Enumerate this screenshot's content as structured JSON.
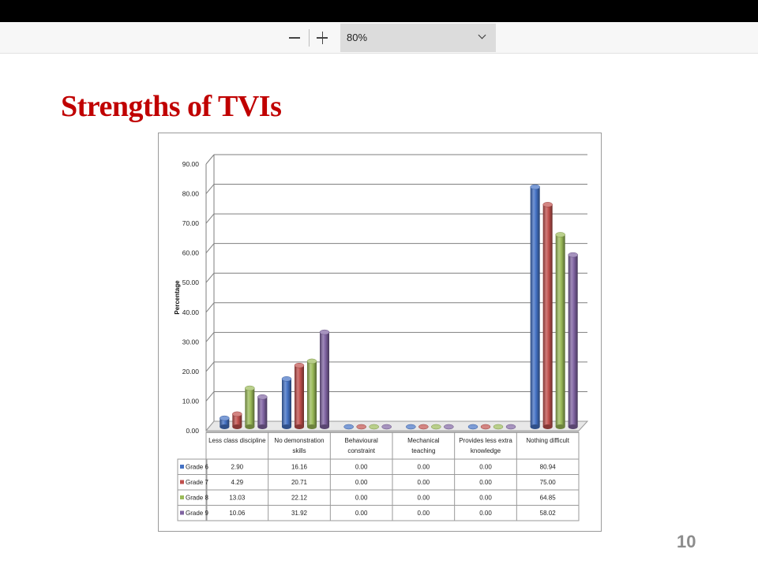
{
  "toolbar": {
    "zoom_value": "80%",
    "zoom_out_icon": "minus-icon",
    "zoom_in_icon": "plus-icon",
    "dropdown_icon": "chevron-down-icon"
  },
  "slide": {
    "title": "Strengths of TVIs",
    "page_number": "10",
    "title_color": "#c00000"
  },
  "chart_data": {
    "type": "bar",
    "ylabel": "Percentage",
    "ylim": [
      0,
      90
    ],
    "y_ticks": [
      "0.00",
      "10.00",
      "20.00",
      "30.00",
      "40.00",
      "50.00",
      "60.00",
      "70.00",
      "80.00",
      "90.00"
    ],
    "categories": [
      [
        "Less class discipline"
      ],
      [
        "No demonstration",
        "skills"
      ],
      [
        "Behavioural",
        "constraint"
      ],
      [
        "Mechanical",
        "teaching"
      ],
      [
        "Provides less extra",
        "knowledge"
      ],
      [
        "Nothing difficult"
      ]
    ],
    "series": [
      {
        "name": "Grade 6",
        "color": "#4472c4",
        "values": [
          2.9,
          16.16,
          0.0,
          0.0,
          0.0,
          80.94
        ],
        "labels": [
          "2.90",
          "16.16",
          "0.00",
          "0.00",
          "0.00",
          "80.94"
        ]
      },
      {
        "name": "Grade 7",
        "color": "#c0504d",
        "values": [
          4.29,
          20.71,
          0.0,
          0.0,
          0.0,
          75.0
        ],
        "labels": [
          "4.29",
          "20.71",
          "0.00",
          "0.00",
          "0.00",
          "75.00"
        ]
      },
      {
        "name": "Grade 8",
        "color": "#9bbb59",
        "values": [
          13.03,
          22.12,
          0.0,
          0.0,
          0.0,
          64.85
        ],
        "labels": [
          "13.03",
          "22.12",
          "0.00",
          "0.00",
          "0.00",
          "64.85"
        ]
      },
      {
        "name": "Grade 9",
        "color": "#8064a2",
        "values": [
          10.06,
          31.92,
          0.0,
          0.0,
          0.0,
          58.02
        ],
        "labels": [
          "10.06",
          "31.92",
          "0.00",
          "0.00",
          "0.00",
          "58.02"
        ]
      }
    ],
    "grid": true,
    "legend": "data-table"
  }
}
